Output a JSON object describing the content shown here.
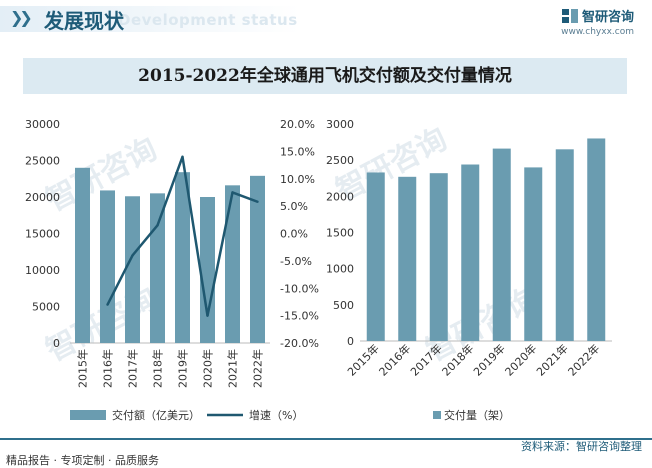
{
  "header": {
    "title": "发展现状",
    "title_en": "Development status",
    "brand_name": "智研咨询",
    "brand_url": "www.chyxx.com"
  },
  "chart_title": "2015-2022年全球通用飞机交付额及交付量情况",
  "chart_data": [
    {
      "type": "bar+line",
      "categories": [
        "2015年",
        "2016年",
        "2017年",
        "2018年",
        "2019年",
        "2020年",
        "2021年",
        "2022年"
      ],
      "series": [
        {
          "name": "交付额（亿美元）",
          "kind": "bar",
          "axis": "left",
          "values": [
            24000,
            20900,
            20100,
            20500,
            23400,
            20000,
            21600,
            22900
          ]
        },
        {
          "name": "增速（%）",
          "kind": "line",
          "axis": "right",
          "values": [
            null,
            -13.0,
            -4.0,
            1.5,
            14.0,
            -15.0,
            7.5,
            5.8
          ]
        }
      ],
      "left_axis": {
        "ylim": [
          0,
          30000
        ],
        "ticks": [
          "0",
          "5000",
          "10000",
          "15000",
          "20000",
          "25000",
          "30000"
        ]
      },
      "right_axis": {
        "ylim": [
          -20,
          20
        ],
        "ticks": [
          "-20.0%",
          "-15.0%",
          "-10.0%",
          "-5.0%",
          "0.0%",
          "5.0%",
          "10.0%",
          "15.0%",
          "20.0%"
        ]
      },
      "legend": [
        "交付额（亿美元）",
        "增速（%）"
      ],
      "colors": {
        "bar": "#6a9cb0",
        "line": "#1f5870"
      }
    },
    {
      "type": "bar",
      "categories": [
        "2015年",
        "2016年",
        "2017年",
        "2018年",
        "2019年",
        "2020年",
        "2021年",
        "2022年"
      ],
      "series": [
        {
          "name": "交付量（架）",
          "values": [
            2330,
            2270,
            2320,
            2440,
            2660,
            2400,
            2650,
            2800
          ]
        }
      ],
      "ylim": [
        0,
        3000
      ],
      "ticks": [
        "0",
        "500",
        "1000",
        "1500",
        "2000",
        "2500",
        "3000"
      ],
      "legend": [
        "交付量（架）"
      ],
      "colors": {
        "bar": "#6a9cb0"
      }
    }
  ],
  "watermark": "智研咨询",
  "footer": {
    "left": "精品报告 · 专项定制 · 品质服务",
    "right": "资料来源：智研咨询整理"
  }
}
